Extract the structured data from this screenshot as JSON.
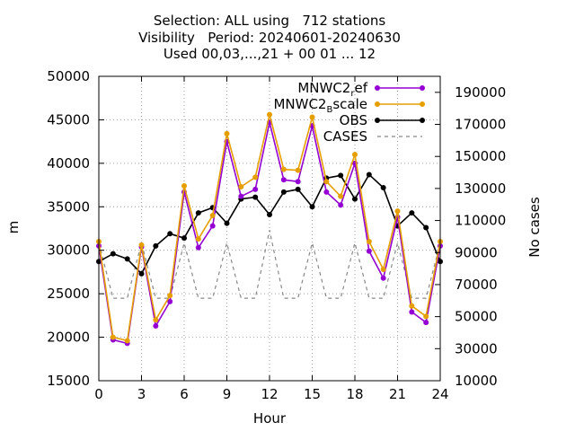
{
  "title_lines": [
    "Selection: ALL using   712 stations",
    "Visibility   Period: 20240601-20240630",
    "Used 00,03,...,21 + 00 01 ... 12"
  ],
  "chart_data": {
    "type": "line",
    "xlabel": "Hour",
    "ylabel": "m",
    "y2label": "No cases",
    "xlim": [
      0,
      24
    ],
    "ylim": [
      15000,
      50000
    ],
    "y2lim": [
      10000,
      200000
    ],
    "xticks": [
      0,
      3,
      6,
      9,
      12,
      15,
      18,
      21,
      24
    ],
    "yticks": [
      15000,
      20000,
      25000,
      30000,
      35000,
      40000,
      45000,
      50000
    ],
    "y2ticks": [
      10000,
      30000,
      50000,
      70000,
      90000,
      110000,
      130000,
      150000,
      170000,
      190000
    ],
    "grid": true,
    "legend_position": "top-right",
    "series": [
      {
        "name": "MNWC2_ref",
        "legend_main": "MNWC2",
        "legend_sub": "r",
        "legend_rest": "ef",
        "color": "#9400d3",
        "style": "line-points",
        "x": [
          0,
          1,
          2,
          3,
          4,
          5,
          6,
          7,
          8,
          9,
          10,
          11,
          12,
          13,
          14,
          15,
          16,
          17,
          18,
          19,
          20,
          21,
          22,
          23,
          24
        ],
        "values": [
          30500,
          19700,
          19300,
          30400,
          21300,
          24100,
          36700,
          30300,
          32800,
          42500,
          36200,
          37000,
          44700,
          38100,
          37900,
          44300,
          36700,
          35200,
          40000,
          29900,
          26800,
          33800,
          22900,
          21700,
          30500
        ]
      },
      {
        "name": "MNWC2_Bscale",
        "legend_main": "MNWC2",
        "legend_sub": "B",
        "legend_rest": "scale",
        "color": "#e69f00",
        "style": "line-points",
        "x": [
          0,
          1,
          2,
          3,
          4,
          5,
          6,
          7,
          8,
          9,
          10,
          11,
          12,
          13,
          14,
          15,
          16,
          17,
          18,
          19,
          20,
          21,
          22,
          23,
          24
        ],
        "values": [
          31000,
          20000,
          19600,
          30600,
          22000,
          24800,
          37400,
          31300,
          34000,
          43400,
          37300,
          38400,
          45600,
          39300,
          39200,
          45300,
          37900,
          36200,
          41000,
          31000,
          27800,
          34500,
          23600,
          22400,
          31000
        ]
      },
      {
        "name": "OBS",
        "legend_main": "OBS",
        "legend_sub": "",
        "legend_rest": "",
        "color": "#000000",
        "style": "line-points",
        "x": [
          0,
          1,
          2,
          3,
          4,
          5,
          6,
          7,
          8,
          9,
          10,
          11,
          12,
          13,
          14,
          15,
          16,
          17,
          18,
          19,
          20,
          21,
          22,
          23,
          24
        ],
        "values": [
          28700,
          29600,
          29000,
          27300,
          30500,
          31900,
          31400,
          34300,
          34900,
          33100,
          35900,
          36100,
          34100,
          36700,
          37000,
          35000,
          38300,
          38600,
          35900,
          38700,
          37200,
          32800,
          34300,
          32600,
          28700
        ]
      },
      {
        "name": "CASES",
        "legend_main": "CASES",
        "legend_sub": "",
        "legend_rest": "",
        "color": "#888888",
        "style": "dashed",
        "axis": "y2",
        "x": [
          0,
          1,
          2,
          3,
          4,
          5,
          6,
          7,
          8,
          9,
          10,
          11,
          12,
          13,
          14,
          15,
          16,
          17,
          18,
          19,
          20,
          21,
          22,
          23,
          24
        ],
        "values": [
          96000,
          61500,
          61500,
          96000,
          61500,
          61500,
          96000,
          61500,
          61500,
          96000,
          61500,
          61500,
          104000,
          61500,
          61500,
          96000,
          61500,
          61500,
          96000,
          61500,
          61500,
          96000,
          61500,
          61500,
          96000
        ]
      }
    ]
  }
}
